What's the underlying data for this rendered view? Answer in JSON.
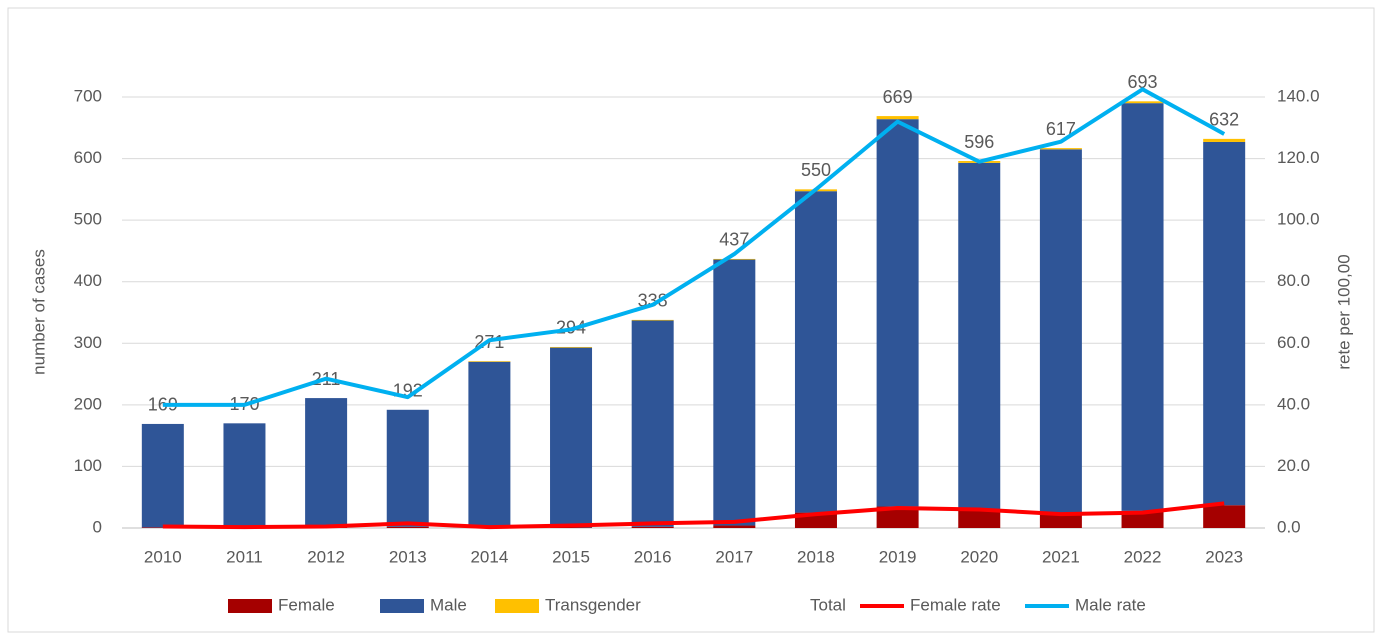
{
  "chart_data": {
    "type": "bar",
    "stacked": true,
    "categories": [
      "2010",
      "2011",
      "2012",
      "2013",
      "2014",
      "2015",
      "2016",
      "2017",
      "2018",
      "2019",
      "2020",
      "2021",
      "2022",
      "2023"
    ],
    "series": [
      {
        "name": "Female",
        "color": "#a50000",
        "values": [
          1,
          0,
          2,
          2,
          1,
          1,
          2,
          4,
          25,
          35,
          30,
          25,
          28,
          37
        ]
      },
      {
        "name": "Male",
        "color": "#2f5597",
        "values": [
          168,
          170,
          209,
          190,
          269,
          292,
          335,
          432,
          522,
          629,
          563,
          590,
          662,
          590
        ]
      },
      {
        "name": "Transgender",
        "color": "#ffc000",
        "values": [
          0,
          0,
          0,
          0,
          1,
          1,
          1,
          1,
          3,
          5,
          3,
          2,
          3,
          5
        ]
      },
      {
        "name": "Total",
        "type": "label",
        "values": [
          169,
          170,
          211,
          192,
          271,
          294,
          338,
          437,
          550,
          669,
          596,
          617,
          693,
          632
        ]
      },
      {
        "name": "Female rate",
        "type": "line",
        "axis": "y2",
        "color": "#ff0000",
        "values": [
          0.5,
          0.3,
          0.5,
          1.5,
          0.3,
          0.8,
          1.5,
          2.0,
          4.5,
          6.5,
          6,
          4.5,
          5,
          8
        ]
      },
      {
        "name": "Male rate",
        "type": "line",
        "axis": "y2",
        "color": "#00b0f0",
        "values": [
          40,
          40,
          48.5,
          42.5,
          61,
          64.5,
          72.5,
          89,
          110,
          132,
          119,
          125.5,
          142.5,
          128
        ]
      }
    ],
    "ylabel": "number of cases",
    "y2label": "rete per 100,00",
    "ylim": [
      0,
      700
    ],
    "yticks": [
      0,
      100,
      200,
      300,
      400,
      500,
      600,
      700
    ],
    "y2lim": [
      0,
      140
    ],
    "y2ticks": [
      {
        "value": 0,
        "label": "0.0"
      },
      {
        "value": 20,
        "label": "20.0"
      },
      {
        "value": 40,
        "label": "40.0"
      },
      {
        "value": 60,
        "label": "60.0"
      },
      {
        "value": 80,
        "label": "80.0"
      },
      {
        "value": 100,
        "label": "100.0"
      },
      {
        "value": 120,
        "label": "120.0"
      },
      {
        "value": 140,
        "label": "140.0"
      }
    ],
    "grid": true,
    "legend": "bottom"
  }
}
